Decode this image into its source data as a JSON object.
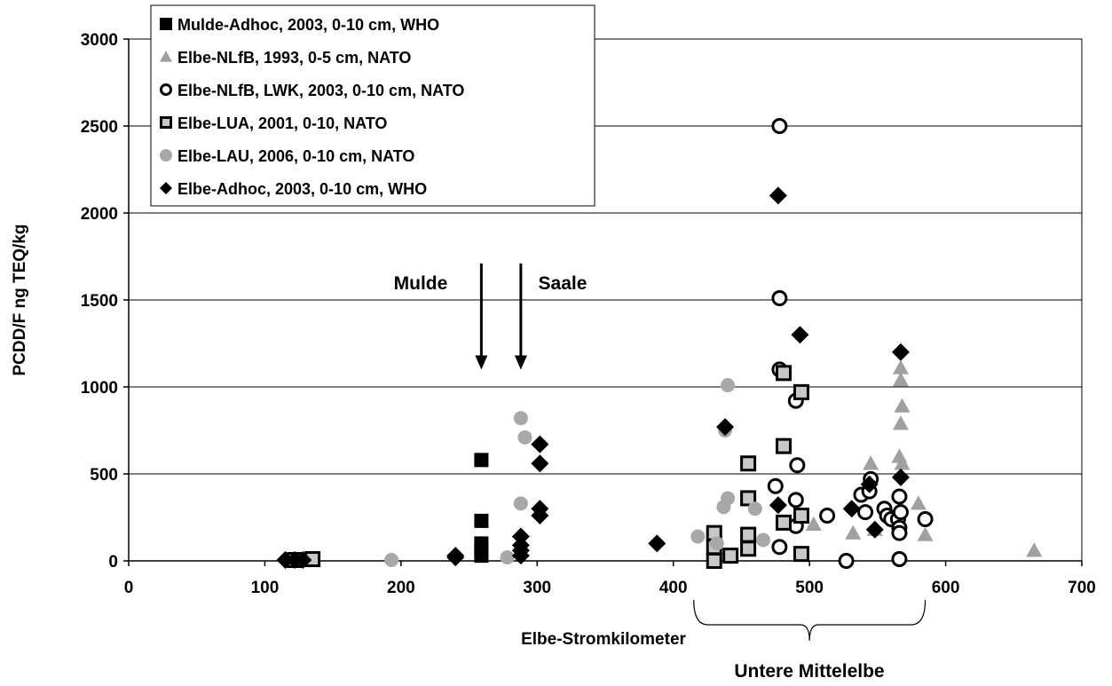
{
  "chart_data": {
    "type": "scatter",
    "title": "",
    "xlabel": "Elbe-Stromkilometer",
    "ylabel": "PCDD/F ng TEQ/kg",
    "xlim": [
      0,
      700
    ],
    "ylim": [
      0,
      3000
    ],
    "x_ticks": [
      "0",
      "100",
      "200",
      "300",
      "400",
      "500",
      "600",
      "700"
    ],
    "y_ticks": [
      "0",
      "500",
      "1000",
      "1500",
      "2000",
      "2500",
      "3000"
    ],
    "grid": "horizontal",
    "legend_position": "top-left",
    "annotations": {
      "mulde": "Mulde",
      "saale": "Saale",
      "mulde_arrow_x": 259,
      "saale_arrow_x": 288,
      "arrow_top_y": 1710,
      "arrow_bottom_y": 1110,
      "bracket_label": "Untere Mittelelbe",
      "bracket_range": [
        415,
        585
      ]
    },
    "series": [
      {
        "name": "Mulde-Adhoc, 2003, 0-10 cm, WHO",
        "marker": "square-filled",
        "color": "#000000",
        "points": [
          [
            259,
            580
          ],
          [
            259,
            230
          ],
          [
            259,
            100
          ],
          [
            259,
            60
          ],
          [
            259,
            30
          ]
        ]
      },
      {
        "name": "Elbe-NLfB, 1993, 0-5 cm, NATO",
        "marker": "triangle",
        "color": "#a0a0a0",
        "points": [
          [
            545,
            560
          ],
          [
            532,
            160
          ],
          [
            548,
            180
          ],
          [
            503,
            210
          ],
          [
            567,
            1110
          ],
          [
            567,
            1040
          ],
          [
            568,
            890
          ],
          [
            567,
            790
          ],
          [
            566,
            600
          ],
          [
            568,
            560
          ],
          [
            580,
            330
          ],
          [
            585,
            150
          ],
          [
            665,
            60
          ]
        ]
      },
      {
        "name": "Elbe-NLfB, LWK, 2003, 0-10 cm, NATO",
        "marker": "circle-open",
        "color": "#000000",
        "points": [
          [
            478,
            2500
          ],
          [
            478,
            1510
          ],
          [
            478,
            1100
          ],
          [
            475,
            430
          ],
          [
            478,
            80
          ],
          [
            490,
            920
          ],
          [
            491,
            550
          ],
          [
            490,
            350
          ],
          [
            490,
            200
          ],
          [
            513,
            260
          ],
          [
            527,
            0
          ],
          [
            538,
            380
          ],
          [
            541,
            280
          ],
          [
            545,
            470
          ],
          [
            544,
            400
          ],
          [
            555,
            300
          ],
          [
            557,
            260
          ],
          [
            560,
            240
          ],
          [
            565,
            240
          ],
          [
            566,
            370
          ],
          [
            567,
            280
          ],
          [
            566,
            190
          ],
          [
            566,
            160
          ],
          [
            566,
            10
          ],
          [
            585,
            240
          ]
        ]
      },
      {
        "name": "Elbe-LUA, 2001, 0-10, NATO",
        "marker": "square-open",
        "color": "#c8c8c8",
        "points": [
          [
            122,
            5
          ],
          [
            135,
            10
          ],
          [
            430,
            160
          ],
          [
            430,
            80
          ],
          [
            430,
            0
          ],
          [
            442,
            30
          ],
          [
            455,
            560
          ],
          [
            455,
            360
          ],
          [
            455,
            150
          ],
          [
            455,
            70
          ],
          [
            481,
            1080
          ],
          [
            481,
            660
          ],
          [
            481,
            220
          ],
          [
            494,
            970
          ],
          [
            494,
            260
          ],
          [
            494,
            40
          ]
        ]
      },
      {
        "name": "Elbe-LAU, 2006, 0-10 cm, NATO",
        "marker": "circle-filled",
        "color": "#a8a8a8",
        "points": [
          [
            193,
            5
          ],
          [
            278,
            20
          ],
          [
            288,
            820
          ],
          [
            291,
            710
          ],
          [
            288,
            330
          ],
          [
            418,
            140
          ],
          [
            432,
            100
          ],
          [
            440,
            1010
          ],
          [
            438,
            750
          ],
          [
            440,
            360
          ],
          [
            437,
            310
          ],
          [
            460,
            300
          ],
          [
            466,
            120
          ]
        ]
      },
      {
        "name": "Elbe-Adhoc, 2003, 0-10 cm, WHO",
        "marker": "diamond",
        "color": "#000000",
        "points": [
          [
            115,
            5
          ],
          [
            122,
            5
          ],
          [
            128,
            5
          ],
          [
            240,
            30
          ],
          [
            240,
            20
          ],
          [
            288,
            140
          ],
          [
            288,
            90
          ],
          [
            288,
            60
          ],
          [
            288,
            30
          ],
          [
            302,
            670
          ],
          [
            302,
            560
          ],
          [
            302,
            300
          ],
          [
            302,
            260
          ],
          [
            388,
            100
          ],
          [
            438,
            770
          ],
          [
            477,
            2100
          ],
          [
            477,
            320
          ],
          [
            493,
            1300
          ],
          [
            531,
            300
          ],
          [
            544,
            440
          ],
          [
            548,
            180
          ],
          [
            567,
            1200
          ],
          [
            567,
            480
          ]
        ]
      }
    ]
  }
}
